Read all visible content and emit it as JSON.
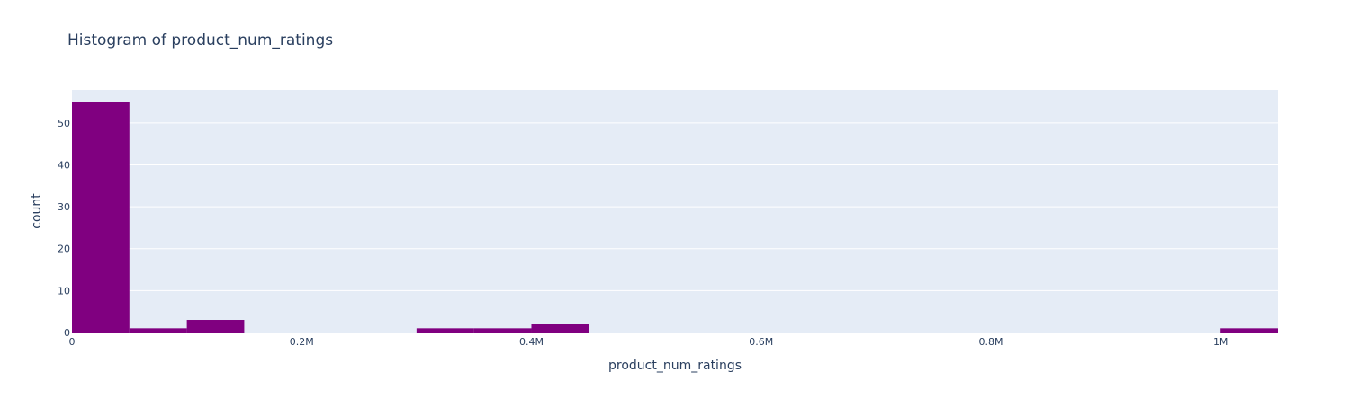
{
  "chart_data": {
    "type": "bar",
    "title": "Histogram of product_num_ratings",
    "xlabel": "product_num_ratings",
    "ylabel": "count",
    "xlim": [
      0,
      1050000
    ],
    "ylim": [
      0,
      57.9
    ],
    "bin_width": 50000,
    "bins": [
      {
        "x0": 0,
        "x1": 50000,
        "count": 55
      },
      {
        "x0": 50000,
        "x1": 100000,
        "count": 1
      },
      {
        "x0": 100000,
        "x1": 150000,
        "count": 3
      },
      {
        "x0": 300000,
        "x1": 350000,
        "count": 1
      },
      {
        "x0": 350000,
        "x1": 400000,
        "count": 1
      },
      {
        "x0": 400000,
        "x1": 450000,
        "count": 2
      },
      {
        "x0": 1000000,
        "x1": 1050000,
        "count": 1
      }
    ],
    "x_ticks": [
      {
        "value": 0,
        "label": "0"
      },
      {
        "value": 200000,
        "label": "0.2M"
      },
      {
        "value": 400000,
        "label": "0.4M"
      },
      {
        "value": 600000,
        "label": "0.6M"
      },
      {
        "value": 800000,
        "label": "0.8M"
      },
      {
        "value": 1000000,
        "label": "1M"
      }
    ],
    "y_ticks": [
      {
        "value": 0,
        "label": "0"
      },
      {
        "value": 10,
        "label": "10"
      },
      {
        "value": 20,
        "label": "20"
      },
      {
        "value": 30,
        "label": "30"
      },
      {
        "value": 40,
        "label": "40"
      },
      {
        "value": 50,
        "label": "50"
      }
    ],
    "grid": true,
    "legend": "none",
    "colors": {
      "bar": "#800080",
      "plot_background": "#e5ecf6",
      "grid": "#ffffff",
      "text": "#2a3f5f"
    }
  }
}
